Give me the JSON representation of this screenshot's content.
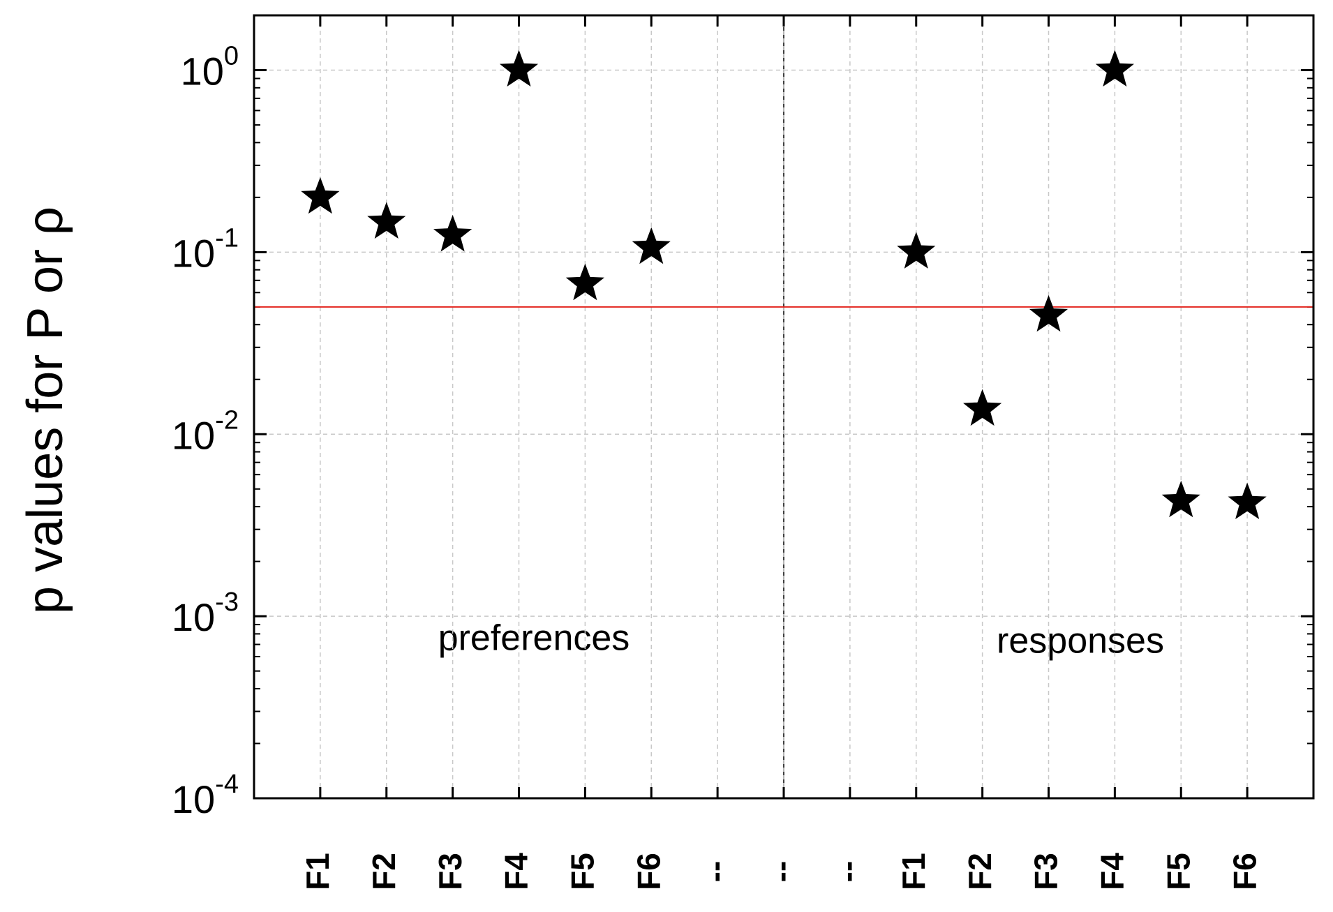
{
  "chart_data": {
    "type": "scatter",
    "ylabel": "p values for P or ρ",
    "categories": [
      "F1",
      "F2",
      "F3",
      "F4",
      "F5",
      "F6",
      "--",
      "--",
      "--",
      "F1",
      "F2",
      "F3",
      "F4",
      "F5",
      "F6"
    ],
    "series": [
      {
        "color": "#000000",
        "values": [
          0.2,
          0.146,
          0.124,
          1,
          0.067,
          0.106,
          null,
          null,
          null,
          0.1,
          0.0137,
          0.045,
          1,
          0.0043,
          0.0042
        ]
      }
    ],
    "annotations": [
      "preferences",
      "responses"
    ],
    "log_scale_y": true,
    "ylim": [
      0.0001,
      2
    ],
    "yticks": [
      {
        "value": 0.0001,
        "label": "10^-4"
      },
      {
        "value": 0.001,
        "label": "10^-3"
      },
      {
        "value": 0.01,
        "label": "10^-2"
      },
      {
        "value": 0.1,
        "label": "10^-1"
      },
      {
        "value": 1,
        "label": "10^0"
      }
    ],
    "hline": {
      "value": 0.05,
      "color": "#e3261f"
    },
    "grid": true,
    "minor_ticks": true
  }
}
